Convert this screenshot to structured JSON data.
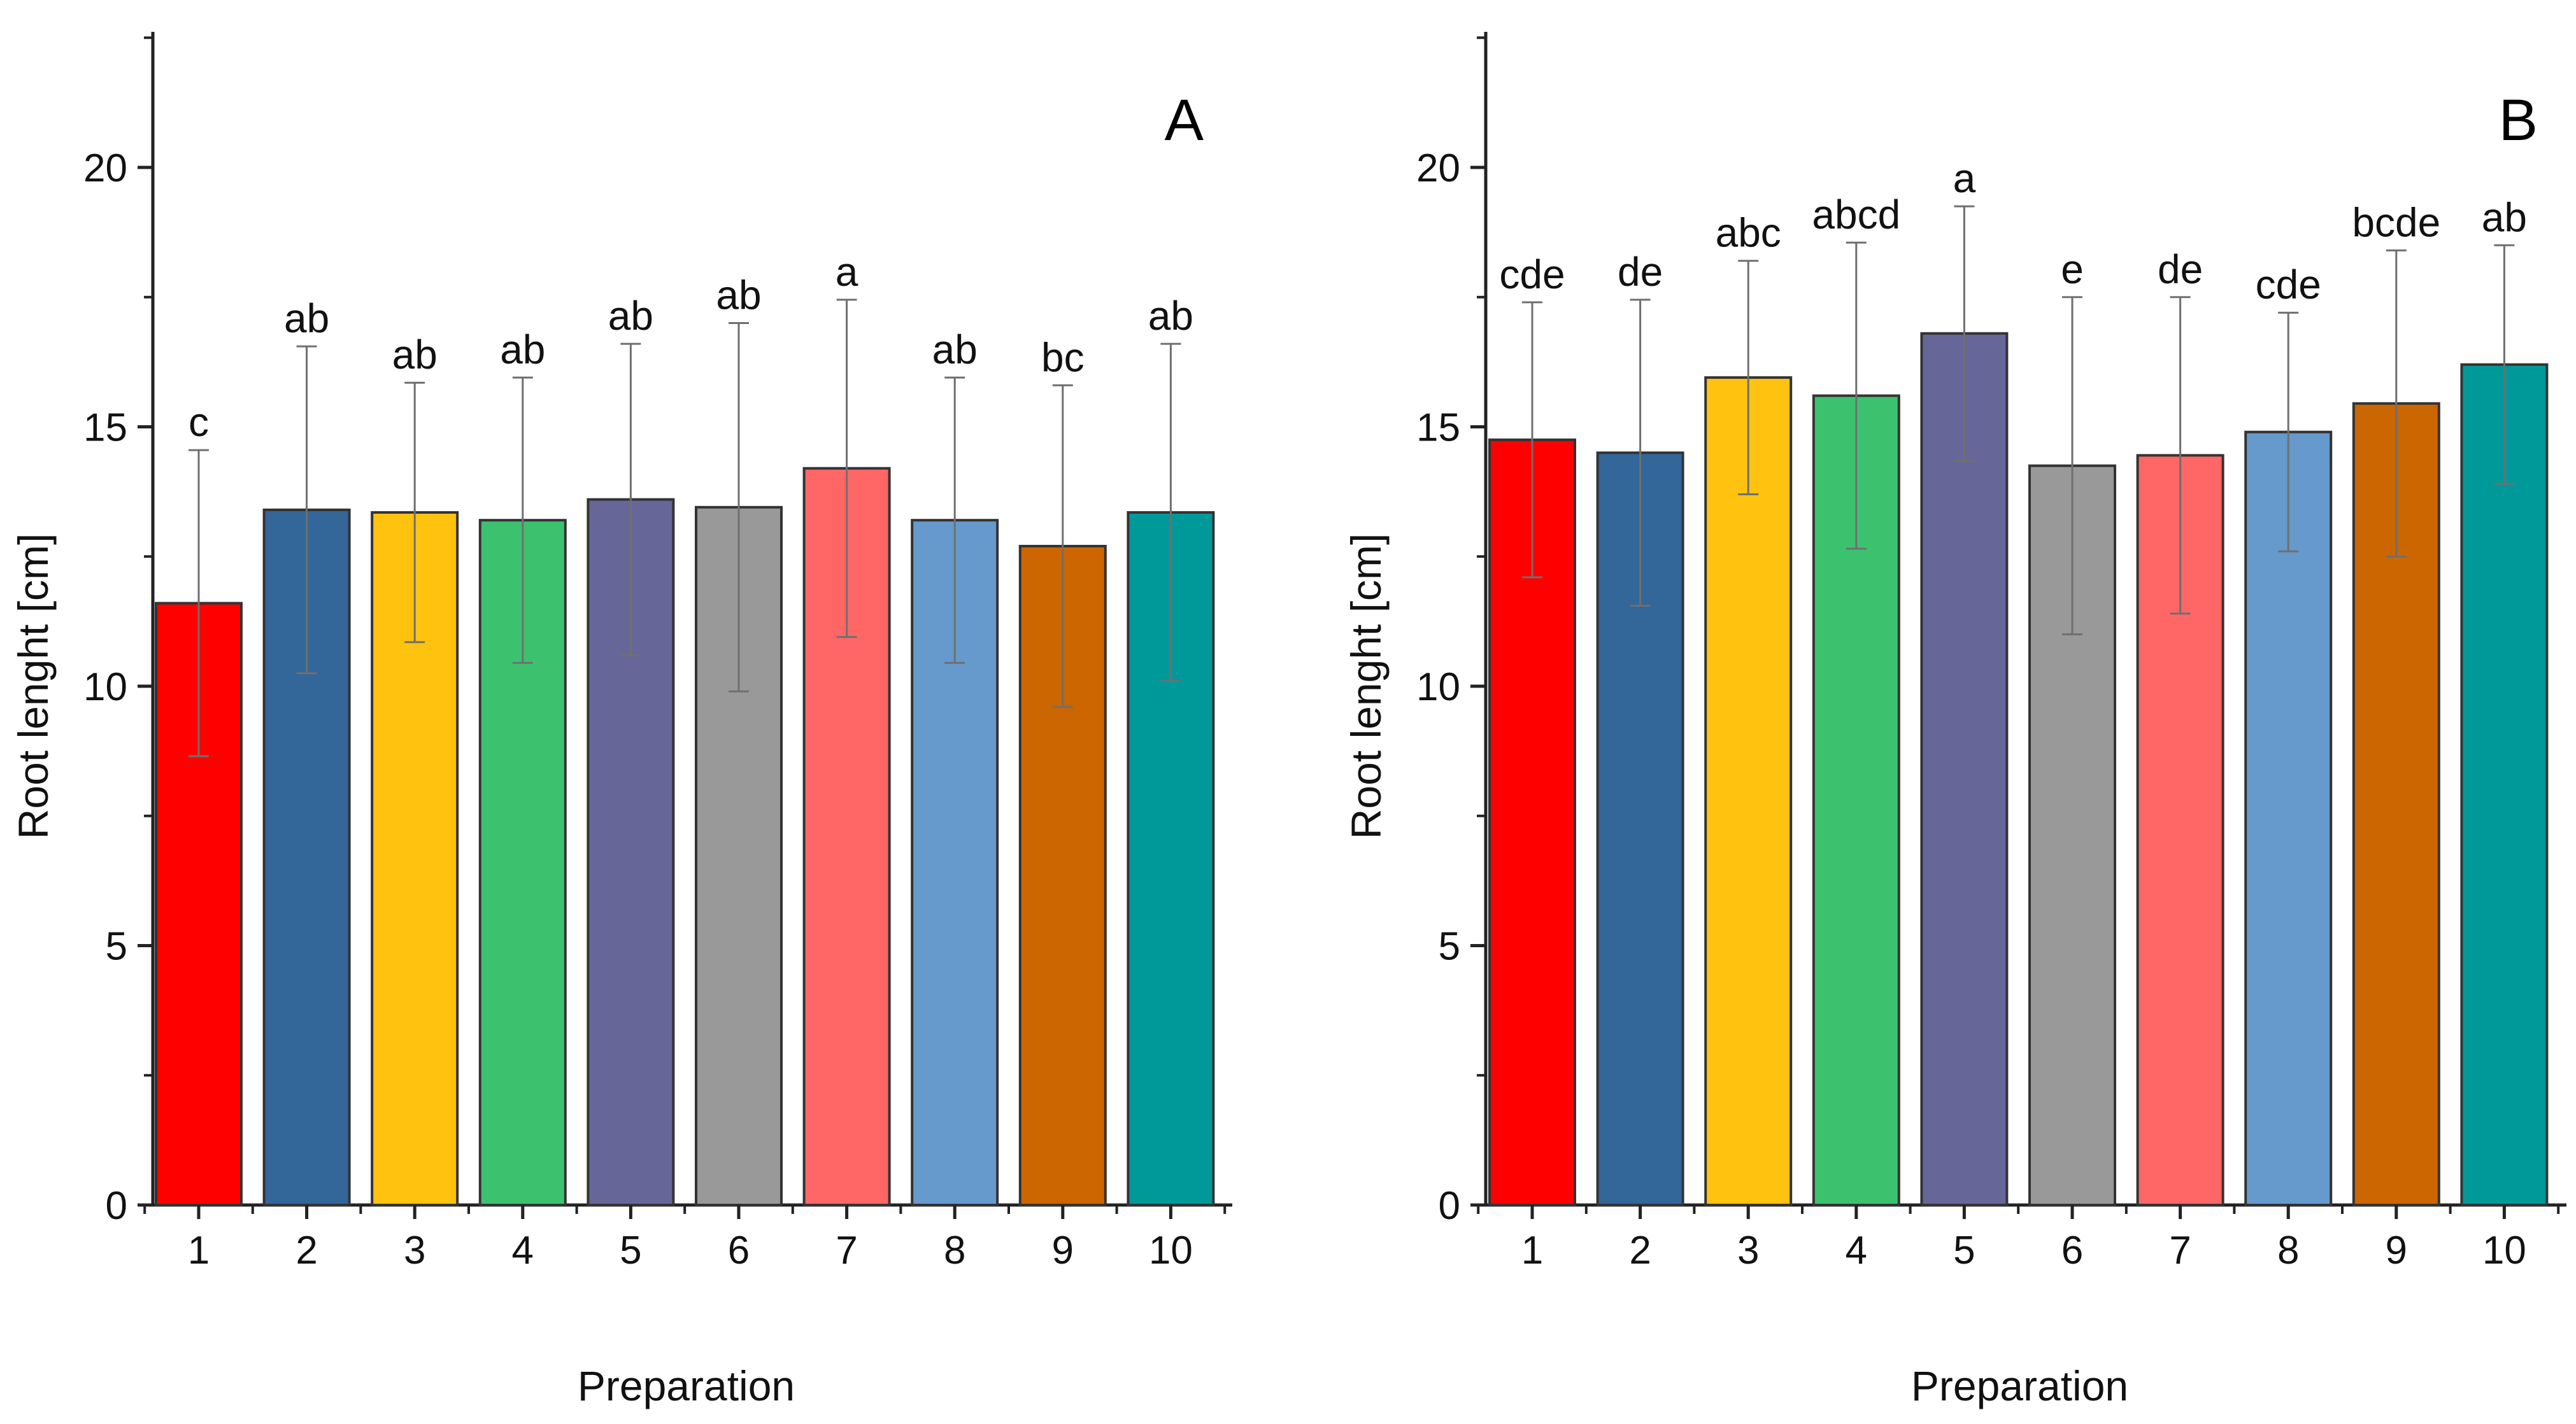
{
  "chart_data": [
    {
      "type": "bar",
      "title": "A",
      "xlabel": "Preparation",
      "ylabel": "Root lenght [cm]",
      "ylim": [
        0,
        22.5
      ],
      "yticks": [
        0,
        5,
        10,
        15,
        20
      ],
      "grid": false,
      "categories": [
        "1",
        "2",
        "3",
        "4",
        "5",
        "6",
        "7",
        "8",
        "9",
        "10"
      ],
      "values": [
        11.6,
        13.4,
        13.35,
        13.2,
        13.6,
        13.45,
        14.2,
        13.2,
        12.7,
        13.35
      ],
      "errors": [
        2.95,
        3.15,
        2.5,
        2.75,
        3.0,
        3.55,
        3.25,
        2.75,
        3.1,
        3.25
      ],
      "significance": [
        "c",
        "ab",
        "ab",
        "ab",
        "ab",
        "ab",
        "a",
        "ab",
        "bc",
        "ab"
      ],
      "colors": [
        "#ff0000",
        "#336699",
        "#ffc20e",
        "#3cc26e",
        "#666699",
        "#999999",
        "#ff6666",
        "#6699cc",
        "#cc6600",
        "#009999"
      ]
    },
    {
      "type": "bar",
      "title": "B",
      "xlabel": "Preparation",
      "ylabel": "Root lenght [cm]",
      "ylim": [
        0,
        22.5
      ],
      "yticks": [
        0,
        5,
        10,
        15,
        20
      ],
      "grid": false,
      "categories": [
        "1",
        "2",
        "3",
        "4",
        "5",
        "6",
        "7",
        "8",
        "9",
        "10"
      ],
      "values": [
        14.75,
        14.5,
        15.95,
        15.6,
        16.8,
        14.25,
        14.45,
        14.9,
        15.45,
        16.2
      ],
      "errors": [
        2.65,
        2.95,
        2.25,
        2.95,
        2.45,
        3.25,
        3.05,
        2.3,
        2.95,
        2.3
      ],
      "significance": [
        "cde",
        "de",
        "abc",
        "abcd",
        "a",
        "e",
        "de",
        "cde",
        "bcde",
        "ab"
      ],
      "colors": [
        "#ff0000",
        "#336699",
        "#ffc20e",
        "#3cc26e",
        "#666699",
        "#999999",
        "#ff6666",
        "#6699cc",
        "#cc6600",
        "#009999"
      ]
    }
  ]
}
